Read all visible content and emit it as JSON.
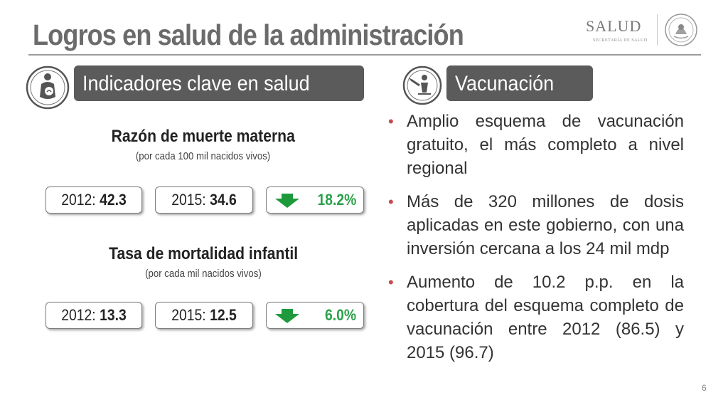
{
  "slide": {
    "title": "Logros en salud de la administración",
    "page_number": "6"
  },
  "logo": {
    "name": "SALUD",
    "subtitle": "SECRETARÍA DE SALUD"
  },
  "left_section": {
    "icon": "pregnant-woman-icon",
    "header": "Indicadores clave en salud",
    "indicators": [
      {
        "title": "Razón de muerte materna",
        "subtitle": "(por cada 100 mil nacidos vivos)",
        "year1_label": "2012: ",
        "year1_value": "42.3",
        "year2_label": "2015: ",
        "year2_value": "34.6",
        "change_icon": "down-arrow-icon",
        "change": "18.2%"
      },
      {
        "title": "Tasa de mortalidad infantil",
        "subtitle": "(por cada mil nacidos vivos)",
        "year1_label": "2012: ",
        "year1_value": "13.3",
        "year2_label": "2015: ",
        "year2_value": "12.5",
        "change_icon": "down-arrow-icon",
        "change": "6.0%"
      }
    ]
  },
  "right_section": {
    "icon": "vaccination-icon",
    "header": "Vacunación",
    "bullets": [
      "Amplio esquema de vacunación gratuito, el más completo a nivel regional",
      "Más de 320 millones de dosis aplicadas en este gobierno, con una inversión cercana a los 24 mil mdp",
      "Aumento de 10.2 p.p. en la cobertura del esquema completo de vacunación entre 2012 (86.5) y 2015 (96.7)"
    ]
  },
  "colors": {
    "header_bg": "#5b5b5b",
    "title": "#6b6b6b",
    "change_green": "#2aa14a",
    "arrow_green": "#1e9a3c",
    "bullet": "#c94a4a"
  }
}
